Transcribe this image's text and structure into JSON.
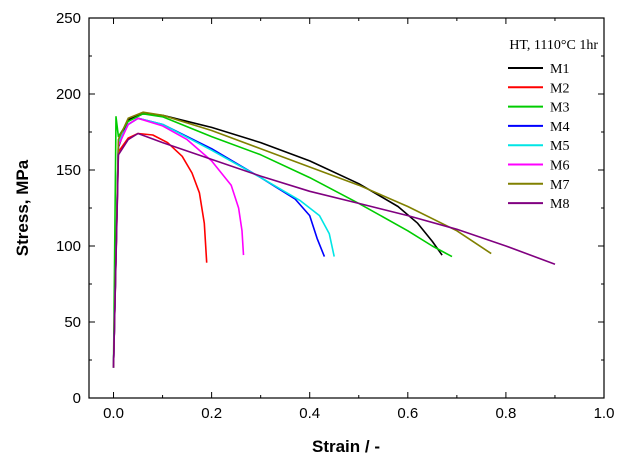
{
  "chart_data": {
    "type": "line",
    "xlabel": "Strain / -",
    "ylabel": "Stress, MPa",
    "xlim": [
      -0.05,
      1.0
    ],
    "ylim": [
      0,
      250
    ],
    "xticks": [
      "0.0",
      "0.2",
      "0.4",
      "0.6",
      "0.8",
      "1.0"
    ],
    "yticks": [
      "0",
      "50",
      "100",
      "150",
      "200",
      "250"
    ],
    "xtick_values": [
      0.0,
      0.2,
      0.4,
      0.6,
      0.8,
      1.0
    ],
    "ytick_values": [
      0,
      50,
      100,
      150,
      200,
      250
    ],
    "legend_title": "HT, 1110°C 1hr",
    "legend_position": "top-right",
    "series": [
      {
        "name": "M1",
        "color": "#000000",
        "x": [
          0.0,
          0.01,
          0.03,
          0.06,
          0.1,
          0.2,
          0.3,
          0.4,
          0.5,
          0.58,
          0.62,
          0.65,
          0.67
        ],
        "y": [
          20,
          165,
          183,
          187,
          186,
          178,
          168,
          156,
          141,
          126,
          115,
          103,
          94
        ]
      },
      {
        "name": "M2",
        "color": "#ff0000",
        "x": [
          0.0,
          0.01,
          0.03,
          0.05,
          0.08,
          0.11,
          0.14,
          0.16,
          0.175,
          0.185,
          0.19
        ],
        "y": [
          20,
          162,
          171,
          174,
          173,
          168,
          159,
          148,
          135,
          115,
          89
        ]
      },
      {
        "name": "M3",
        "color": "#00cc00",
        "x": [
          0.0,
          0.005,
          0.01,
          0.03,
          0.06,
          0.1,
          0.2,
          0.3,
          0.4,
          0.5,
          0.6,
          0.65,
          0.69
        ],
        "y": [
          20,
          185,
          172,
          182,
          187,
          185,
          172,
          160,
          145,
          128,
          110,
          100,
          93
        ]
      },
      {
        "name": "M4",
        "color": "#0000ff",
        "x": [
          0.0,
          0.01,
          0.03,
          0.05,
          0.1,
          0.2,
          0.3,
          0.37,
          0.4,
          0.415,
          0.43
        ],
        "y": [
          20,
          168,
          180,
          184,
          180,
          164,
          145,
          131,
          120,
          105,
          93
        ]
      },
      {
        "name": "M5",
        "color": "#00e5e5",
        "x": [
          0.0,
          0.01,
          0.03,
          0.05,
          0.1,
          0.2,
          0.3,
          0.38,
          0.42,
          0.44,
          0.45
        ],
        "y": [
          20,
          168,
          180,
          184,
          180,
          163,
          145,
          130,
          120,
          108,
          93
        ]
      },
      {
        "name": "M6",
        "color": "#ff00ff",
        "x": [
          0.0,
          0.01,
          0.03,
          0.05,
          0.1,
          0.15,
          0.2,
          0.24,
          0.255,
          0.262,
          0.265
        ],
        "y": [
          20,
          166,
          180,
          184,
          179,
          170,
          156,
          140,
          125,
          110,
          94
        ]
      },
      {
        "name": "M7",
        "color": "#808000",
        "x": [
          0.0,
          0.01,
          0.03,
          0.06,
          0.1,
          0.2,
          0.3,
          0.4,
          0.5,
          0.6,
          0.7,
          0.77
        ],
        "y": [
          20,
          170,
          184,
          188,
          186,
          176,
          164,
          152,
          140,
          126,
          110,
          95
        ]
      },
      {
        "name": "M8",
        "color": "#800080",
        "x": [
          0.0,
          0.01,
          0.03,
          0.05,
          0.1,
          0.2,
          0.3,
          0.4,
          0.5,
          0.6,
          0.7,
          0.8,
          0.9
        ],
        "y": [
          20,
          160,
          170,
          174,
          168,
          157,
          146,
          136,
          128,
          120,
          111,
          100,
          88
        ]
      }
    ]
  }
}
